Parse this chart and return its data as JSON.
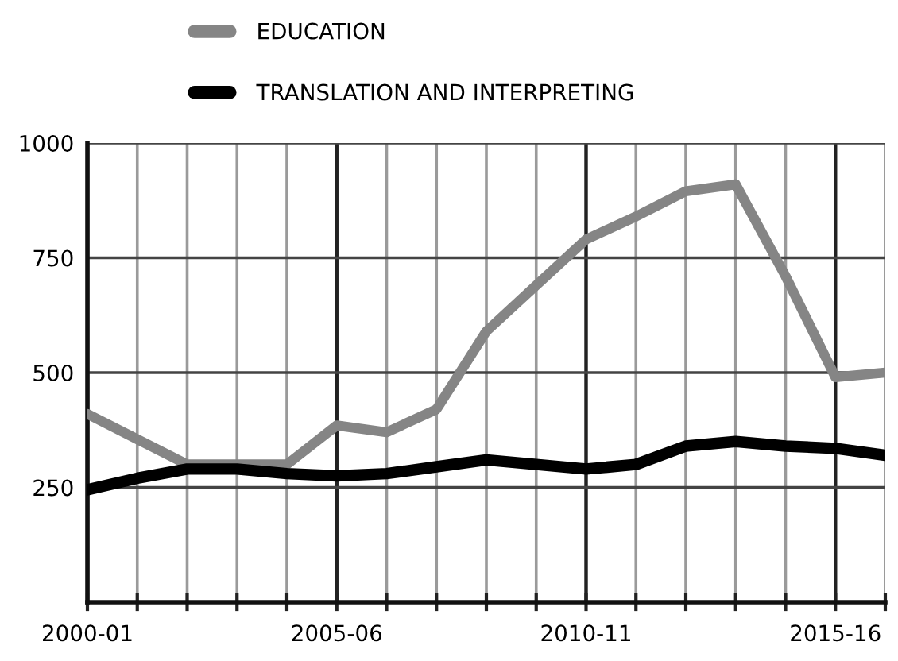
{
  "chart_data": {
    "type": "line",
    "categories": [
      "2000-01",
      null,
      null,
      null,
      null,
      "2005-06",
      null,
      null,
      null,
      null,
      "2010-11",
      null,
      null,
      null,
      null,
      "2015-16",
      null
    ],
    "series": [
      {
        "name": "EDUCATION",
        "color": "#858585",
        "values": [
          410,
          355,
          300,
          300,
          300,
          385,
          370,
          420,
          590,
          690,
          790,
          840,
          895,
          910,
          710,
          490,
          500
        ]
      },
      {
        "name": "TRANSLATION AND INTERPRETING",
        "color": "#000000",
        "values": [
          245,
          270,
          290,
          290,
          280,
          275,
          280,
          295,
          310,
          300,
          290,
          300,
          340,
          350,
          340,
          335,
          320
        ]
      }
    ],
    "ylim": [
      0,
      1000
    ],
    "yticks": [
      250,
      500,
      750,
      1000
    ],
    "grid": true,
    "legend": "top",
    "marker": "none",
    "line_style": "solid"
  }
}
